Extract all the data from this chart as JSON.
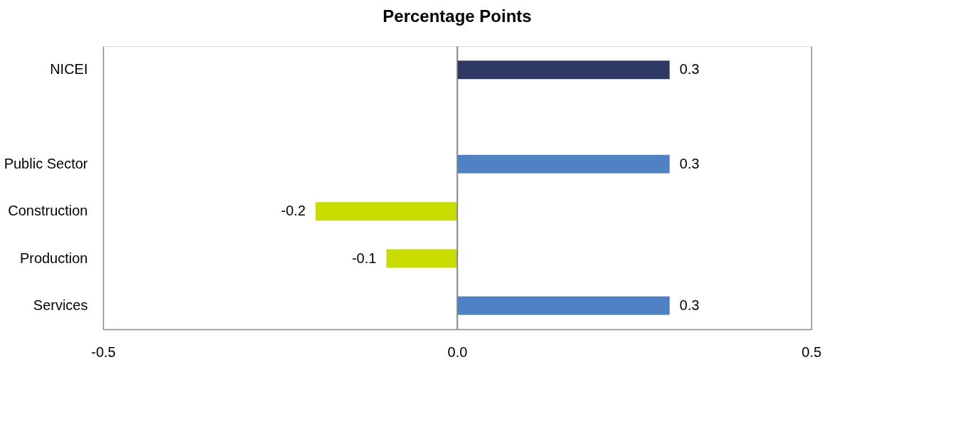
{
  "chart_data": {
    "type": "bar",
    "orientation": "horizontal",
    "title": "Percentage Points",
    "categories": [
      "NICEI",
      null,
      "Public Sector",
      "Construction",
      "Production",
      "Services"
    ],
    "values": [
      0.3,
      null,
      0.3,
      -0.2,
      -0.1,
      0.3
    ],
    "colors": [
      "#2e3a63",
      "#4f81c4",
      "#4f81c4",
      "#c9dc00",
      "#c9dc00",
      "#4f81c4"
    ],
    "xlim": [
      -0.5,
      0.5
    ],
    "xticks": [
      -0.5,
      {
        "value": 0,
        "label": "0.0"
      },
      0.5
    ],
    "data_labels": true,
    "grid": "x"
  }
}
